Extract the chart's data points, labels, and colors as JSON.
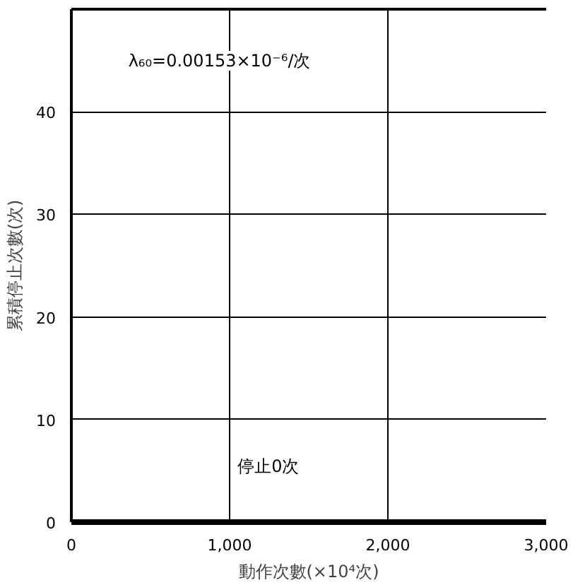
{
  "chart_data": {
    "type": "line",
    "xlabel": "動作次數(×10⁴次)",
    "ylabel": "累積停止次數(次)",
    "x": [
      0,
      3000
    ],
    "series": [
      {
        "color": "#000000",
        "values": [
          0,
          0
        ]
      }
    ],
    "xlim": [
      0,
      3000
    ],
    "ylim": [
      0,
      50
    ],
    "xticks": [
      0,
      {
        "value": 1000,
        "label": "1,000"
      },
      {
        "value": 2000,
        "label": "2,000"
      },
      {
        "value": 3000,
        "label": "3,000"
      }
    ],
    "yticks": [
      0,
      10,
      20,
      30,
      40
    ],
    "grid": true,
    "annotations": [
      "λ₆₀=0.00153×10⁻⁶/次",
      "停止0次"
    ]
  }
}
